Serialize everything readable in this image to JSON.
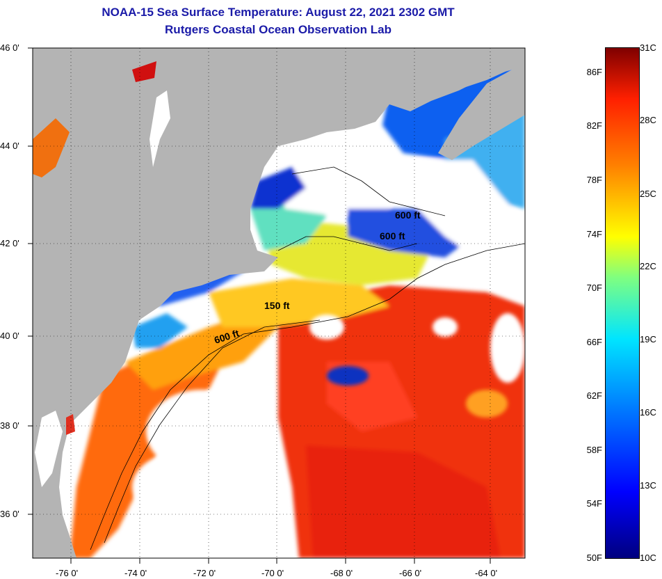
{
  "title": {
    "line1": "NOAA-15 Sea Surface Temperature:  August 22, 2021 2302 GMT",
    "line2": "Rutgers Coastal Ocean Observation Lab"
  },
  "map": {
    "lat_labels": [
      "46 0'",
      "44 0'",
      "42 0'",
      "40 0'",
      "38 0'",
      "36 0'"
    ],
    "lon_labels": [
      "-76 0'",
      "-74 0'",
      "-72 0'",
      "-70 0'",
      "-68 0'",
      "-66 0'",
      "-64 0'"
    ],
    "isobaths": [
      {
        "label": "150 ft",
        "lon": -70.1,
        "lat": 40.6
      },
      {
        "label": "600 ft",
        "lon": -71.6,
        "lat": 39.9
      },
      {
        "label": "600 ft",
        "lon": -66.5,
        "lat": 42.2
      },
      {
        "label": "600 ft",
        "lon": -65.8,
        "lat": 42.6
      }
    ],
    "colors": {
      "land": "#b4b4b4",
      "cloud": "#ffffff",
      "border": "#000000"
    }
  },
  "colorbar": {
    "min_label_f": "50F",
    "max_label_f": "86F",
    "fahrenheit_labels": [
      "86F",
      "82F",
      "78F",
      "74F",
      "70F",
      "66F",
      "62F",
      "58F",
      "54F",
      "50F"
    ],
    "celsius_labels": [
      "31C",
      "28C",
      "25C",
      "22C",
      "19C",
      "16C",
      "13C",
      "10C"
    ]
  }
}
